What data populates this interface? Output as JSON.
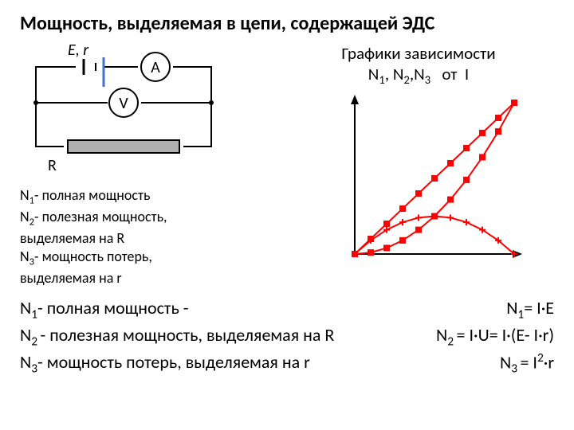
{
  "title": "Мощность, выделяемая в цепи, содержащей ЭДС",
  "graph_header_line1": "Графики зависимости",
  "graph_header_line2_prefix": "N",
  "graph_header_line2": ", ",
  "graph_header_from": "от",
  "graph_header_var": "I",
  "definitions": {
    "n1": "- полная мощность",
    "n2pre": "- полезная мощность,",
    "n2post": "выделяемая на R",
    "n3pre": "- мощность потерь,",
    "n3post": "выделяемая на r"
  },
  "formulas": {
    "n1_label": "- полная мощность -",
    "n1_eq_prefix": "= I·E",
    "n2_label": "- полезная мощность, выделяемая на R",
    "n2_eq": "= I·U= I·(E- I·r)",
    "n3_label": "- мощность потерь, выделяемая на r",
    "n3_eq_prefix": "= I",
    "n3_eq_suffix": "·r"
  },
  "circuit": {
    "labels": {
      "E": "E, r",
      "A": "A",
      "V": "V",
      "R": "R"
    },
    "stroke": "#000000",
    "stroke_width": 2
  },
  "colors": {
    "series": "#ff0000",
    "axis": "#000000",
    "accent_line": "#4472c4"
  },
  "chart": {
    "type": "line",
    "xlim": [
      0,
      10
    ],
    "ylim": [
      0,
      10
    ],
    "background": "#ffffff",
    "series": [
      {
        "name": "N1",
        "color": "#ff0000",
        "marker": "square",
        "points": [
          [
            0,
            0
          ],
          [
            1,
            1
          ],
          [
            2,
            2
          ],
          [
            3,
            3
          ],
          [
            4,
            4
          ],
          [
            5,
            5
          ],
          [
            6,
            6
          ],
          [
            7,
            7
          ],
          [
            8,
            8
          ],
          [
            9,
            9
          ],
          [
            10,
            10
          ]
        ]
      },
      {
        "name": "N3",
        "color": "#ff0000",
        "marker": "square",
        "points": [
          [
            0,
            0
          ],
          [
            1,
            0.1
          ],
          [
            2,
            0.4
          ],
          [
            3,
            0.9
          ],
          [
            4,
            1.6
          ],
          [
            5,
            2.5
          ],
          [
            6,
            3.6
          ],
          [
            7,
            4.9
          ],
          [
            8,
            6.4
          ],
          [
            9,
            8.1
          ],
          [
            10,
            10
          ]
        ]
      },
      {
        "name": "N2",
        "color": "#ff0000",
        "marker": "plus",
        "points": [
          [
            0,
            0
          ],
          [
            1,
            0.9
          ],
          [
            2,
            1.6
          ],
          [
            3,
            2.1
          ],
          [
            4,
            2.4
          ],
          [
            5,
            2.5
          ],
          [
            6,
            2.4
          ],
          [
            7,
            2.1
          ],
          [
            8,
            1.6
          ],
          [
            9,
            0.9
          ],
          [
            10,
            0
          ]
        ]
      }
    ],
    "marker_size": 4,
    "line_width": 2
  }
}
